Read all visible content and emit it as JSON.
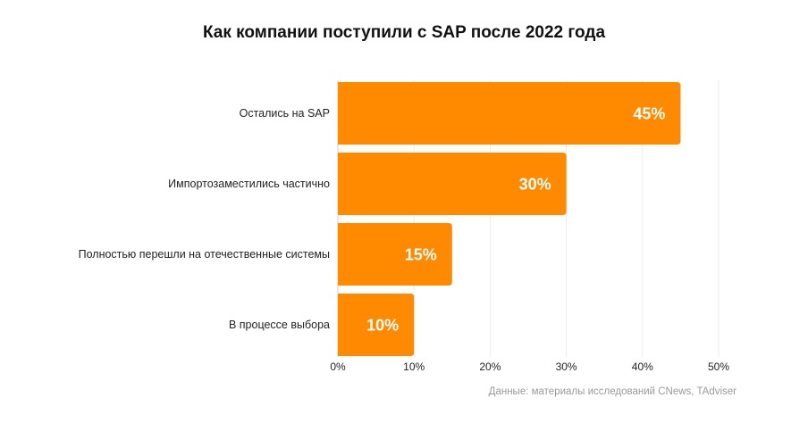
{
  "chart_data": {
    "type": "bar",
    "orientation": "horizontal",
    "title": "Как компании поступили с SAP после 2022 года",
    "categories": [
      "Остались на SAP",
      "Импортозаместились частично",
      "Полностью перешли на отечественные системы",
      "В процессе выбора"
    ],
    "values": [
      45,
      30,
      15,
      10
    ],
    "value_labels": [
      "45%",
      "30%",
      "15%",
      "10%"
    ],
    "xlim": [
      0,
      50
    ],
    "x_ticks": [
      0,
      10,
      20,
      30,
      40,
      50
    ],
    "x_tick_labels": [
      "0%",
      "10%",
      "20%",
      "30%",
      "40%",
      "50%"
    ],
    "grid": true,
    "bar_color": "#FF8A00",
    "source": "Данные: материалы исследований CNews, TAdviser"
  }
}
